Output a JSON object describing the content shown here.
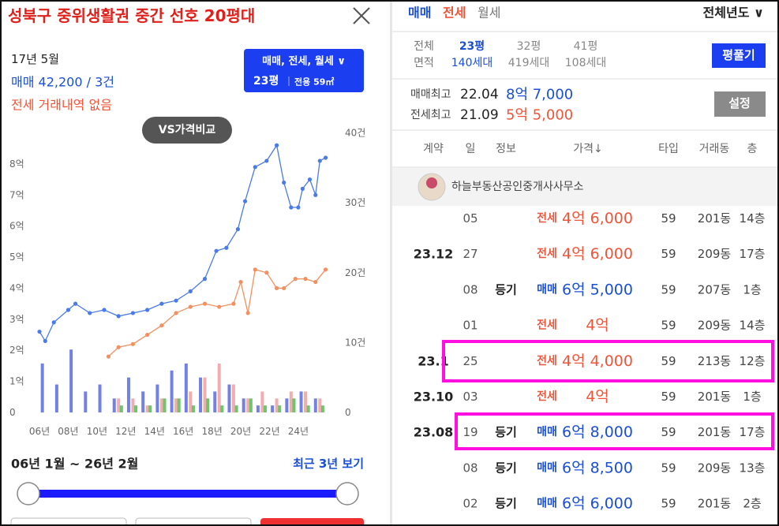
{
  "header": {
    "title": "성북구 중위생활권 중간 선호 20평대"
  },
  "info": {
    "date": "17년 5월",
    "sale": "매매 42,200 / 3건",
    "jeonse": "전세 거래내역 없음"
  },
  "filter": {
    "line1": "매매, 전세, 월세 ∨",
    "size": "23평",
    "area": "전용 59㎡"
  },
  "compare": "VS가격비교",
  "chart_data": {
    "type": "line",
    "xlim": [
      2005.67,
      2026.2
    ],
    "xticks": [
      {
        "value": 2006,
        "label": "06년"
      },
      {
        "value": 2008,
        "label": "08년"
      },
      {
        "value": 2010,
        "label": "10년"
      },
      {
        "value": 2012,
        "label": "12년"
      },
      {
        "value": 2014,
        "label": "14년"
      },
      {
        "value": 2016,
        "label": "16년"
      },
      {
        "value": 2018,
        "label": "18년"
      },
      {
        "value": 2020,
        "label": "20년"
      },
      {
        "value": 2022,
        "label": "22년"
      },
      {
        "value": 2024,
        "label": "24년"
      }
    ],
    "ylim": [
      0,
      9
    ],
    "yticks": [
      0,
      {
        "value": 1,
        "label": "1억"
      },
      {
        "value": 2,
        "label": "2억"
      },
      {
        "value": 3,
        "label": "3억"
      },
      {
        "value": 4,
        "label": "4억"
      },
      {
        "value": 5,
        "label": "5억"
      },
      {
        "value": 6,
        "label": "6억"
      },
      {
        "value": 7,
        "label": "7억"
      },
      {
        "value": 8,
        "label": "8억"
      }
    ],
    "y2lim": [
      0,
      40
    ],
    "y2ticks": [
      0,
      {
        "value": 10,
        "label": "10건"
      },
      {
        "value": 20,
        "label": "20건"
      },
      {
        "value": 30,
        "label": "30건"
      },
      {
        "value": 40,
        "label": "40건"
      }
    ],
    "series": [
      {
        "type": "bar",
        "axis": "y2",
        "color": "#5b6be0",
        "x": [
          2006.2,
          2007.2,
          2008.2,
          2009.2,
          2010.2,
          2011.2,
          2012.2,
          2013.2,
          2014.2,
          2015.2,
          2016.2,
          2017.2,
          2018.2,
          2019.2,
          2020.2,
          2021.2,
          2022.2,
          2023.2,
          2024.2,
          2025.2
        ],
        "values": [
          7,
          4,
          9,
          3,
          4,
          2,
          5,
          3,
          4,
          6,
          7,
          5,
          3,
          4,
          2,
          1,
          1,
          2,
          3,
          2
        ]
      },
      {
        "type": "bar",
        "axis": "y2",
        "color": "#f0a0a0",
        "x": [
          2011.5,
          2012.5,
          2013.5,
          2014.5,
          2015.5,
          2016.5,
          2017.5,
          2018.5,
          2019.5,
          2020.5,
          2021.5,
          2022.5,
          2023.5,
          2024.5,
          2025.5
        ],
        "values": [
          2,
          2,
          1,
          2,
          2,
          3,
          5,
          7,
          4,
          2,
          3,
          2,
          3,
          3,
          2
        ]
      },
      {
        "type": "bar",
        "axis": "y2",
        "color": "#55bb55",
        "x": [
          2011.7,
          2012.7,
          2013.7,
          2014.7,
          2015.7,
          2016.7,
          2017.7,
          2018.7,
          2019.7,
          2020.7,
          2021.7,
          2022.7,
          2023.7,
          2024.7,
          2025.7
        ],
        "values": [
          1,
          1,
          1,
          2,
          2,
          1,
          2,
          1,
          1,
          2,
          1,
          1,
          2,
          1,
          1
        ]
      },
      {
        "type": "line",
        "color": "#4a7be8",
        "x": [
          2006,
          2006.4,
          2007,
          2008,
          2008.5,
          2009.5,
          2010.5,
          2011.5,
          2012.5,
          2013.5,
          2014.5,
          2015.5,
          2016.5,
          2017.5,
          2018.3,
          2019,
          2019.8,
          2020.3,
          2021,
          2021.8,
          2022.5,
          2023,
          2023.5,
          2024,
          2024.3,
          2024.8,
          2025.2,
          2025.5,
          2025.9
        ],
        "values": [
          2.6,
          2.3,
          2.9,
          3.3,
          3.5,
          3.2,
          3.3,
          3.1,
          3.2,
          3.3,
          3.5,
          3.6,
          3.9,
          4.3,
          5.2,
          5.3,
          5.9,
          6.8,
          7.9,
          8.1,
          8.6,
          7.4,
          6.6,
          6.6,
          7.2,
          7.5,
          7.0,
          8.1,
          8.2
        ]
      },
      {
        "type": "line",
        "color": "#f39060",
        "x": [
          2010.8,
          2011.5,
          2012.5,
          2013.5,
          2014.5,
          2015.5,
          2016.5,
          2017.5,
          2018.5,
          2019.5,
          2020,
          2020.5,
          2021,
          2021.8,
          2022.5,
          2023,
          2023.8,
          2024.5,
          2025.2,
          2025.9
        ],
        "values": [
          1.8,
          2.1,
          2.2,
          2.5,
          2.8,
          3.2,
          3.4,
          3.5,
          3.4,
          3.5,
          4.2,
          3.2,
          4.6,
          4.5,
          4.0,
          4.0,
          4.3,
          4.3,
          4.2,
          4.6
        ]
      }
    ]
  },
  "range": {
    "label": "06년 1월 ~ 26년 2월",
    "recent": "최근 3년 보기"
  },
  "tabs": {
    "items": [
      "매매",
      "전세",
      "월세"
    ],
    "year": "전체년도 ∨"
  },
  "sizes": {
    "head": [
      "전체",
      "면적"
    ],
    "items": [
      {
        "size": "23평",
        "units": "140세대"
      },
      {
        "size": "32평",
        "units": "419세대"
      },
      {
        "size": "41평",
        "units": "108세대"
      }
    ],
    "button": "평풀기"
  },
  "highs": [
    {
      "label": "매매최고",
      "date": "22.04",
      "price": "8억 7,000"
    },
    {
      "label": "전세최고",
      "date": "21.09",
      "price": "5억 5,000"
    }
  ],
  "settings": "설정",
  "table": {
    "header": [
      "계약",
      "일",
      "정보",
      "가격↓",
      "타입",
      "거래동",
      "층"
    ],
    "agent": "하늘부동산공인중개사사무소",
    "rows": [
      {
        "day": "05",
        "kind": "전세",
        "price": "4억 6,000",
        "type": "59",
        "dong": "201동",
        "floor": "14층"
      },
      {
        "month": "23.12",
        "day": "27",
        "kind": "전세",
        "price": "4억 6,000",
        "type": "59",
        "dong": "209동",
        "floor": "17층"
      },
      {
        "day": "08",
        "info": "등기",
        "kind": "매매",
        "price": "6억 5,000",
        "type": "59",
        "dong": "207동",
        "floor": "1층"
      },
      {
        "day": "01",
        "kind": "전세",
        "price": "4억",
        "type": "59",
        "dong": "209동",
        "floor": "14층"
      },
      {
        "month": "23.1",
        "day": "25",
        "kind": "전세",
        "price": "4억 4,000",
        "type": "59",
        "dong": "213동",
        "floor": "12층"
      },
      {
        "month": "23.10",
        "day": "03",
        "kind": "전세",
        "price": "4억",
        "type": "59",
        "dong": "201동",
        "floor": "1층"
      },
      {
        "month": "23.08",
        "day": "19",
        "info": "등기",
        "kind": "매매",
        "price": "6억 8,000",
        "type": "59",
        "dong": "201동",
        "floor": "17층"
      },
      {
        "day": "08",
        "info": "등기",
        "kind": "매매",
        "price": "6억 8,500",
        "type": "59",
        "dong": "209동",
        "floor": "13층"
      },
      {
        "day": "02",
        "info": "등기",
        "kind": "매매",
        "price": "6억 6,000",
        "type": "59",
        "dong": "201동",
        "floor": "2층"
      }
    ]
  }
}
